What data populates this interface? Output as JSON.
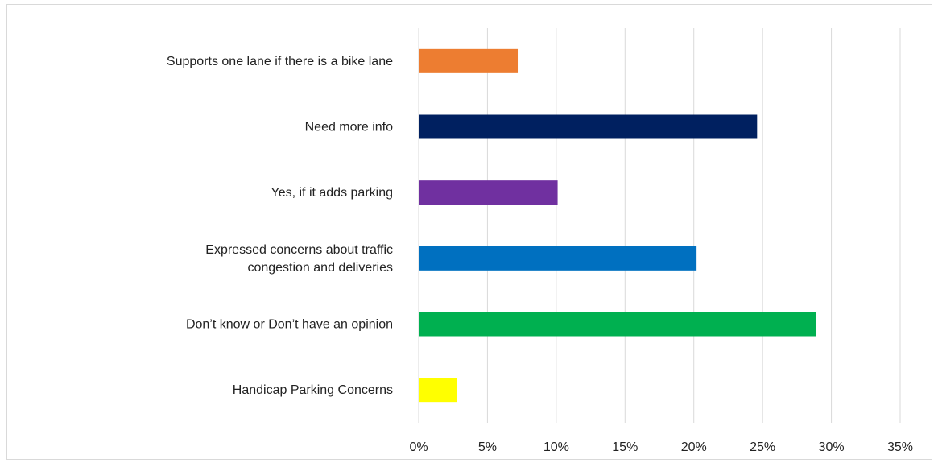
{
  "chart_data": {
    "type": "bar",
    "orientation": "horizontal",
    "title": "",
    "xlabel": "",
    "ylabel": "",
    "xlim": [
      0,
      35
    ],
    "x_ticks": [
      0,
      5,
      10,
      15,
      20,
      25,
      30,
      35
    ],
    "x_tick_labels": [
      "0%",
      "5%",
      "10%",
      "15%",
      "20%",
      "25%",
      "30%",
      "35%"
    ],
    "grid": "vertical",
    "legend": "none",
    "categories": [
      [
        "Supports one lane if there is a bike lane"
      ],
      [
        "Need more info"
      ],
      [
        "Yes, if it adds parking"
      ],
      [
        "Expressed concerns about traffic",
        "congestion and deliveries"
      ],
      [
        "Don’t know or Don’t have an opinion"
      ],
      [
        "Handicap Parking Concerns"
      ]
    ],
    "values": [
      7.2,
      24.6,
      10.1,
      20.2,
      28.9,
      2.8
    ],
    "colors": [
      "#ed7d31",
      "#002060",
      "#7030a0",
      "#0070c0",
      "#00b050",
      "#ffff00"
    ],
    "gridline_color": "#d9d9d9"
  }
}
